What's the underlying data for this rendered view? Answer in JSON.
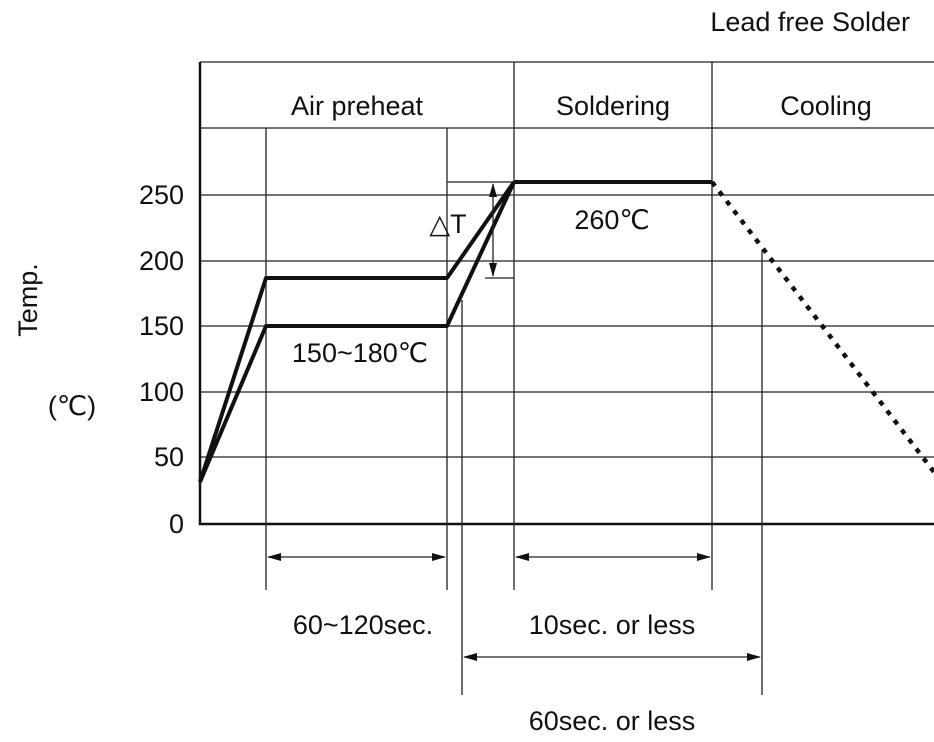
{
  "title": "Lead free Solder",
  "phases": [
    "Air preheat",
    "Soldering",
    "Cooling"
  ],
  "y_axis": {
    "label": "Temp.",
    "unit": "(℃)",
    "ticks": [
      "250",
      "200",
      "150",
      "100",
      "50",
      "0"
    ]
  },
  "annotations": {
    "delta_t": "△T",
    "peak": "260℃",
    "preheat_range": "150~180℃"
  },
  "durations": [
    "60~120sec.",
    "10sec. or less",
    "60sec. or less"
  ]
}
